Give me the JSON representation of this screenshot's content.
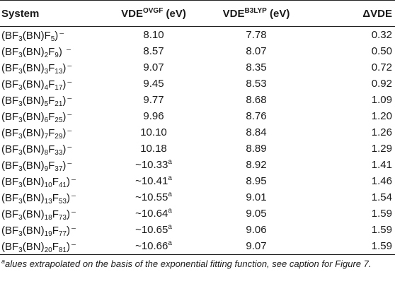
{
  "headers": {
    "system": "System",
    "ovgf_main": "VDE",
    "ovgf_sup": "OVGF",
    "ovgf_unit": "(eV)",
    "b3lyp_main": "VDE",
    "b3lyp_sup": "B3LYP",
    "b3lyp_unit": "(eV)",
    "delta": "ΔVDE"
  },
  "rows": [
    {
      "n1": "3",
      "n2": "",
      "n3": "5",
      "tail": "⁻",
      "ovgf": "8.10",
      "ovgf_sup": "",
      "b3lyp": "7.78",
      "delta": "0.32"
    },
    {
      "n1": "3",
      "n2": "2",
      "n3": "9",
      "tail": " ⁻",
      "ovgf": "8.57",
      "ovgf_sup": "",
      "b3lyp": "8.07",
      "delta": "0.50"
    },
    {
      "n1": "3",
      "n2": "3",
      "n3": "13",
      "tail": "⁻",
      "ovgf": "9.07",
      "ovgf_sup": "",
      "b3lyp": "8.35",
      "delta": "0.72"
    },
    {
      "n1": "3",
      "n2": "4",
      "n3": "17",
      "tail": "⁻",
      "ovgf": "9.45",
      "ovgf_sup": "",
      "b3lyp": "8.53",
      "delta": "0.92"
    },
    {
      "n1": "3",
      "n2": "5",
      "n3": "21",
      "tail": "⁻",
      "ovgf": "9.77",
      "ovgf_sup": "",
      "b3lyp": "8.68",
      "delta": "1.09"
    },
    {
      "n1": "3",
      "n2": "6",
      "n3": "25",
      "tail": "⁻",
      "ovgf": "9.96",
      "ovgf_sup": "",
      "b3lyp": "8.76",
      "delta": "1.20"
    },
    {
      "n1": "3",
      "n2": "7",
      "n3": "29",
      "tail": "⁻",
      "ovgf": "10.10",
      "ovgf_sup": "",
      "b3lyp": "8.84",
      "delta": "1.26"
    },
    {
      "n1": "3",
      "n2": "8",
      "n3": "33",
      "tail": "⁻",
      "ovgf": "10.18",
      "ovgf_sup": "",
      "b3lyp": "8.89",
      "delta": "1.29"
    },
    {
      "n1": "3",
      "n2": "9",
      "n3": "37",
      "tail": "⁻",
      "ovgf": "~10.33",
      "ovgf_sup": "a",
      "b3lyp": "8.92",
      "delta": "1.41"
    },
    {
      "n1": "3",
      "n2": "10",
      "n3": "41",
      "tail": "⁻",
      "ovgf": "~10.41",
      "ovgf_sup": "a",
      "b3lyp": "8.95",
      "delta": "1.46"
    },
    {
      "n1": "3",
      "n2": "13",
      "n3": "53",
      "tail": "⁻",
      "ovgf": "~10.55",
      "ovgf_sup": "a",
      "b3lyp": "9.01",
      "delta": "1.54"
    },
    {
      "n1": "3",
      "n2": "18",
      "n3": "73",
      "tail": "⁻",
      "ovgf": "~10.64",
      "ovgf_sup": "a",
      "b3lyp": "9.05",
      "delta": "1.59"
    },
    {
      "n1": "3",
      "n2": "19",
      "n3": "77",
      "tail": "⁻",
      "ovgf": "~10.65",
      "ovgf_sup": "a",
      "b3lyp": "9.06",
      "delta": "1.59"
    },
    {
      "n1": "3",
      "n2": "20",
      "n3": "81",
      "tail": "⁻",
      "ovgf": "~10.66",
      "ovgf_sup": "a",
      "b3lyp": "9.07",
      "delta": "1.59"
    }
  ],
  "footnote": {
    "mark": "a",
    "text": "alues extrapolated on the basis of the exponential fitting function, see caption for Figure 7."
  }
}
